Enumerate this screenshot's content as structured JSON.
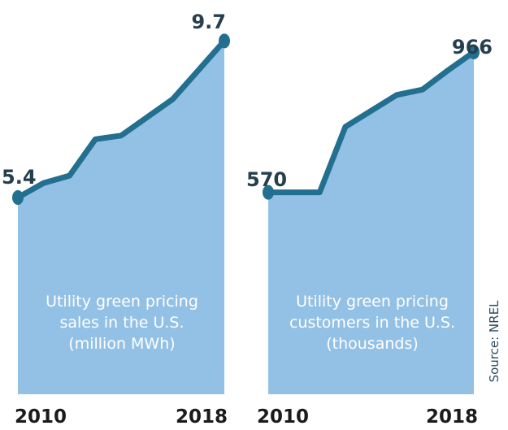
{
  "colors": {
    "fill": "#93c1e6",
    "line": "#236f8f",
    "label_text": "#ffffff",
    "value_text": "#263f4d",
    "axis_text": "#1b1b1b"
  },
  "source": "Source: NREL",
  "chart_data": [
    {
      "type": "area",
      "title_lines": [
        "Utility green pricing",
        "sales in the U.S.",
        "(million MWh)"
      ],
      "x": [
        2010,
        2011,
        2012,
        2013,
        2014,
        2015,
        2016,
        2017,
        2018
      ],
      "values": [
        5.4,
        5.8,
        6.0,
        7.0,
        7.1,
        7.6,
        8.1,
        8.9,
        9.7
      ],
      "ylim": [
        0,
        10.6
      ],
      "tick_labels": [
        "2010",
        "2018"
      ],
      "start_label": "5.4",
      "end_label": "9.7",
      "units": "million MWh"
    },
    {
      "type": "area",
      "title_lines": [
        "Utility green pricing",
        "customers in the U.S.",
        "(thousands)"
      ],
      "x": [
        2010,
        2011,
        2012,
        2013,
        2014,
        2015,
        2016,
        2017,
        2018
      ],
      "values": [
        570,
        570,
        570,
        755,
        800,
        845,
        860,
        915,
        966
      ],
      "ylim": [
        0,
        1090
      ],
      "tick_labels": [
        "2010",
        "2018"
      ],
      "start_label": "570",
      "end_label": "966",
      "units": "thousands"
    }
  ]
}
